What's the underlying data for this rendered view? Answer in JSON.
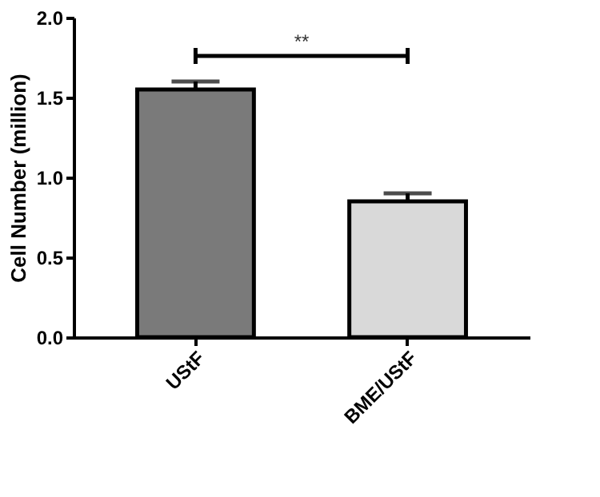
{
  "chart_data": {
    "type": "bar",
    "categories": [
      "UStF",
      "BME/UStF"
    ],
    "values": [
      1.55,
      0.85
    ],
    "colors": [
      "#7a7a7a",
      "#d9d9d9"
    ],
    "errors": [
      [
        1.55,
        1.6
      ],
      [
        0.85,
        0.9
      ]
    ],
    "ylabel": "Cell Number (million)",
    "ylim": [
      0,
      2.0
    ],
    "yticks": [
      {
        "value": 0,
        "label": "0.0"
      },
      {
        "value": 0.5,
        "label": "0.5"
      },
      {
        "value": 1.0,
        "label": "1.0"
      },
      {
        "value": 1.5,
        "label": "1.5"
      },
      {
        "value": 2.0,
        "label": "2.0"
      }
    ],
    "annotations": [
      "**"
    ],
    "grid": false
  }
}
